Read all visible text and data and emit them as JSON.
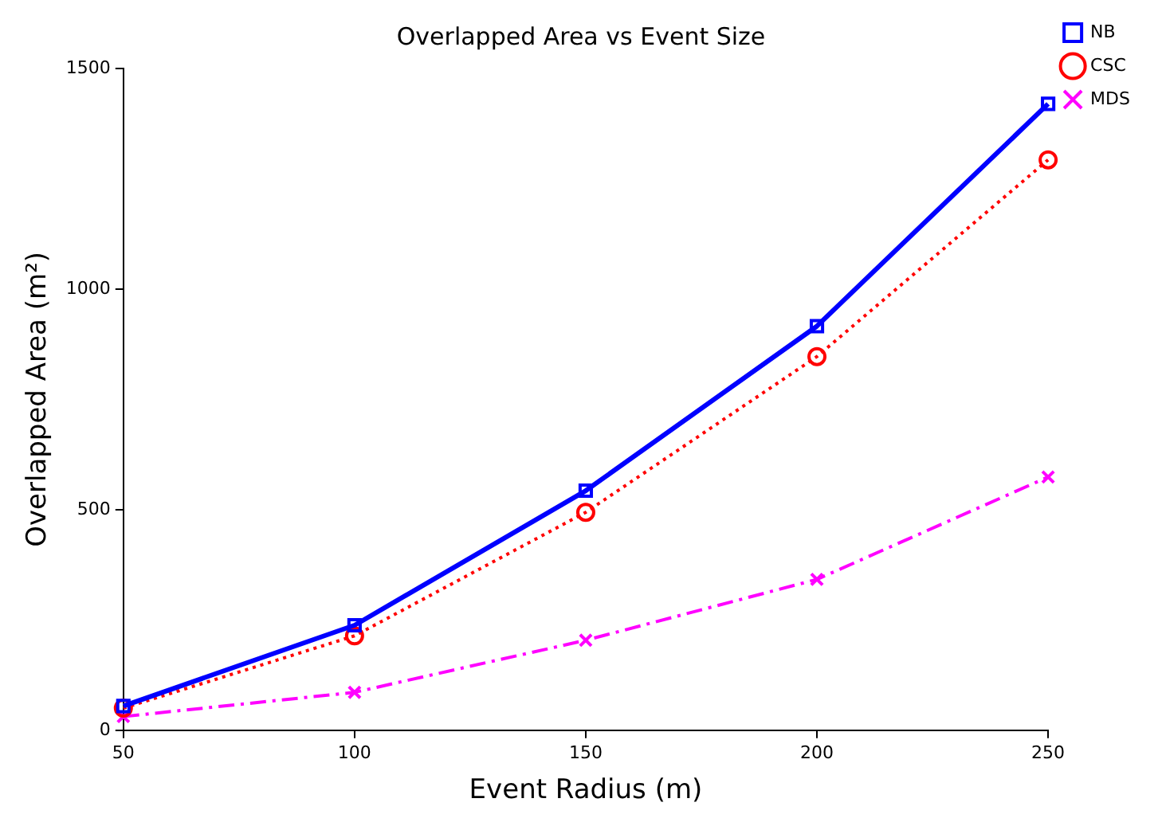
{
  "chart_data": {
    "type": "line",
    "title": "Overlapped Area vs Event Size",
    "xlabel": "Event Radius (m)",
    "ylabel": "Overlapped Area (m²)",
    "x": [
      50,
      100,
      150,
      200,
      250
    ],
    "xlim": [
      50,
      250
    ],
    "xticks": [
      50,
      100,
      150,
      200,
      250
    ],
    "ylim": [
      0,
      1500
    ],
    "yticks": [
      0,
      500,
      1000,
      1500
    ],
    "series": [
      {
        "name": "NB",
        "color": "#0000ff",
        "values": [
          55,
          238,
          543,
          916,
          1420
        ],
        "marker": "square",
        "line_style": "solid"
      },
      {
        "name": "CSC",
        "color": "#ff0000",
        "values": [
          50,
          214,
          494,
          847,
          1293
        ],
        "marker": "circle",
        "line_style": "dotted"
      },
      {
        "name": "MDS",
        "color": "#ff00ff",
        "values": [
          31,
          86,
          204,
          342,
          574
        ],
        "marker": "cross",
        "line_style": "dashed"
      }
    ],
    "grid": false,
    "legend": "top right"
  }
}
